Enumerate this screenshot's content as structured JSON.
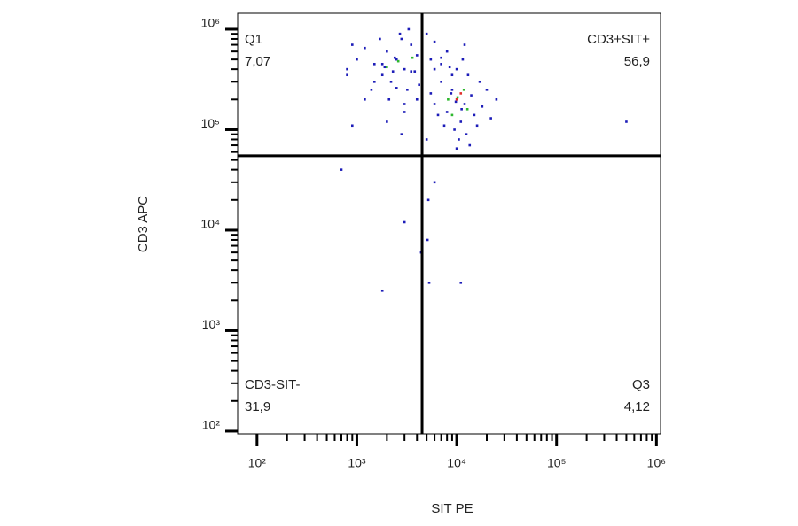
{
  "chart_data": {
    "type": "scatter",
    "x_label": "SIT PE",
    "y_label": "CD3 APC",
    "log_x": true,
    "log_y": true,
    "xlim": [
      64,
      1100000
    ],
    "ylim": [
      94,
      1440000
    ],
    "xticks": [
      {
        "value": 100,
        "label": "10²"
      },
      {
        "value": 1000,
        "label": "10³"
      },
      {
        "value": 10000,
        "label": "10⁴"
      },
      {
        "value": 100000,
        "label": "10⁵"
      },
      {
        "value": 1000000,
        "label": "10⁶"
      }
    ],
    "yticks": [
      {
        "value": 100,
        "label": "10²"
      },
      {
        "value": 1000,
        "label": "10³"
      },
      {
        "value": 10000,
        "label": "10⁴"
      },
      {
        "value": 100000,
        "label": "10⁵"
      },
      {
        "value": 1000000,
        "label": "10⁶"
      }
    ],
    "gates": {
      "x": 4500,
      "y": 55000
    },
    "quadrants": [
      {
        "name": "Q1",
        "percent": "7,07"
      },
      {
        "name": "CD3+SIT+",
        "percent": "56,9"
      },
      {
        "name": "CD3-SIT-",
        "percent": "31,9"
      },
      {
        "name": "Q3",
        "percent": "4,12"
      }
    ],
    "series": [
      {
        "color": "#1c1cb8",
        "x": [
          12000,
          8000,
          9000,
          11000,
          14000,
          7000,
          6000,
          15000,
          13000,
          9500,
          5500,
          4000,
          3000,
          2500,
          2000,
          1500,
          18000,
          20000,
          10500,
          12500,
          8500,
          11500,
          7500,
          16000,
          9800,
          11200,
          8800,
          6500,
          3500,
          2800,
          4500,
          1200,
          25000,
          22000,
          5000,
          13500,
          10000,
          17000,
          800,
          900,
          1800,
          6000,
          7000,
          2500,
          2000,
          3000,
          1800,
          3500,
          1500,
          2200,
          4000,
          2800,
          1200,
          3200,
          2400,
          1900,
          3800,
          4500,
          5500,
          7000,
          8000,
          9000,
          1000,
          900,
          1400,
          2100,
          3000,
          4200,
          6000,
          5000,
          3300,
          2700,
          1700,
          2300,
          10000,
          12000,
          800,
          5200,
          5100,
          4400,
          3000,
          5300,
          6000,
          1800,
          500000,
          700,
          11000
        ],
        "values": [
          180000,
          150000,
          250000,
          120000,
          220000,
          300000,
          180000,
          140000,
          350000,
          100000,
          230000,
          200000,
          150000,
          260000,
          120000,
          300000,
          170000,
          250000,
          80000,
          90000,
          420000,
          500000,
          110000,
          110000,
          190000,
          160000,
          230000,
          140000,
          380000,
          90000,
          130000,
          200000,
          200000,
          130000,
          80000,
          70000,
          65000,
          300000,
          350000,
          110000,
          450000,
          400000,
          520000,
          500000,
          600000,
          400000,
          350000,
          700000,
          450000,
          300000,
          550000,
          800000,
          650000,
          250000,
          520000,
          420000,
          380000,
          620000,
          500000,
          450000,
          600000,
          350000,
          500000,
          700000,
          250000,
          200000,
          180000,
          280000,
          750000,
          900000,
          1000000,
          900000,
          800000,
          380000,
          400000,
          700000,
          400000,
          20000,
          8000,
          6000,
          12000,
          3000,
          30000,
          2500,
          120000,
          40000,
          3000
        ]
      },
      {
        "color": "#2eb82e",
        "x": [
          10200,
          9000,
          11800,
          8200,
          2600,
          3600,
          2000,
          12800
        ],
        "values": [
          210000,
          140000,
          250000,
          200000,
          480000,
          520000,
          420000,
          160000
        ]
      },
      {
        "color": "#e0302a",
        "x": [
          10000,
          11000
        ],
        "values": [
          200000,
          230000
        ]
      }
    ]
  }
}
